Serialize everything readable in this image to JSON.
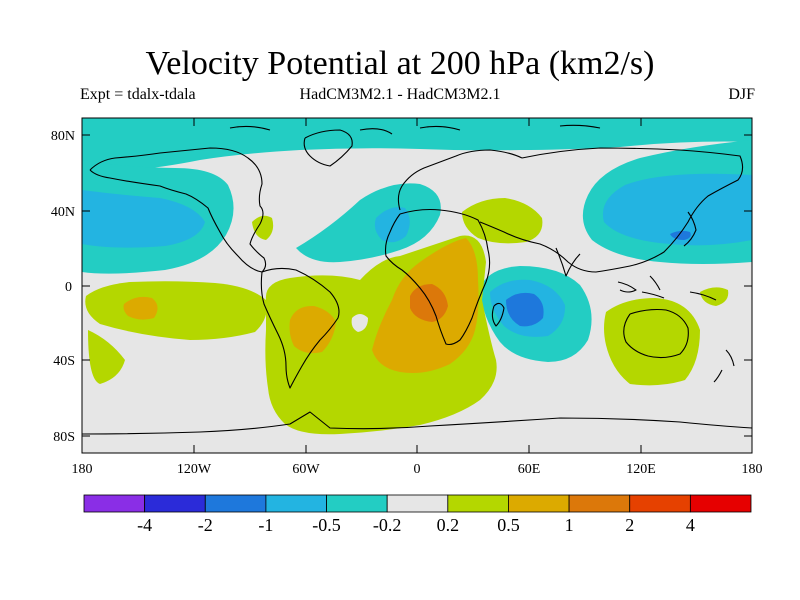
{
  "title": "Velocity Potential at 200 hPa (km2/s)",
  "subtitle_left": "Expt = tdalx-tdala",
  "subtitle_center": "HadCM3M2.1 - HadCM3M2.1",
  "subtitle_right": "DJF",
  "map": {
    "background_color": "#e6e6e6",
    "lon_labels": [
      "180",
      "120W",
      "60W",
      "0",
      "60E",
      "120E",
      "180"
    ],
    "lat_labels": [
      "80N",
      "40N",
      "0",
      "40S",
      "80S"
    ]
  },
  "colorbar": {
    "colors": [
      "#8a2ee6",
      "#2b2bd9",
      "#1e78dc",
      "#23b4e1",
      "#23cdc3",
      "#e6e6e6",
      "#b4d700",
      "#dcaa00",
      "#dc780a",
      "#e64100",
      "#e60000"
    ],
    "labels": [
      "-4",
      "-2",
      "-1",
      "-0.5",
      "-0.2",
      "0.2",
      "0.5",
      "1",
      "2",
      "4"
    ]
  }
}
